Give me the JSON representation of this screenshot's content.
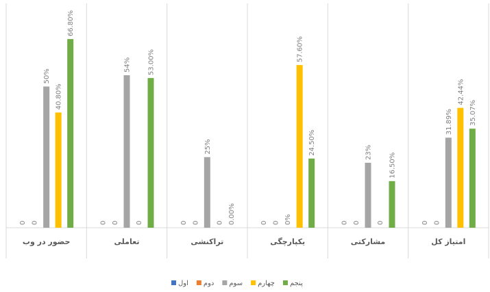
{
  "chart_data": {
    "type": "bar",
    "categories": [
      "حضور در وب",
      "تعاملی",
      "تراکنشی",
      "یکپارچگی",
      "مشارکتی",
      "امتیاز کل"
    ],
    "series": [
      {
        "name": "اول",
        "color": "#4472c4",
        "values": [
          0,
          0,
          0,
          0,
          0,
          0
        ]
      },
      {
        "name": "دوم",
        "color": "#ed7d31",
        "values": [
          0,
          0,
          0,
          0,
          0,
          0
        ]
      },
      {
        "name": "سوم",
        "color": "#a5a5a5",
        "values": [
          50,
          54,
          25,
          0,
          23,
          31.89
        ],
        "value_labels": [
          "50%",
          "54%",
          "25%",
          "0%",
          "23%",
          "31.89%"
        ]
      },
      {
        "name": "چهارم",
        "color": "#ffc000",
        "values": [
          40.8,
          0,
          0,
          57.6,
          0,
          42.44
        ],
        "value_labels": [
          "40.80%",
          "0",
          "0",
          "57.60%",
          "0",
          "42.44%"
        ]
      },
      {
        "name": "پنجم",
        "color": "#70ad47",
        "values": [
          66.8,
          53,
          0,
          24.5,
          16.5,
          35.07
        ],
        "value_labels": [
          "66.80%",
          "53.00%",
          "0.00%",
          "24.50%",
          "16.50%",
          "35.07%"
        ]
      }
    ]
  }
}
